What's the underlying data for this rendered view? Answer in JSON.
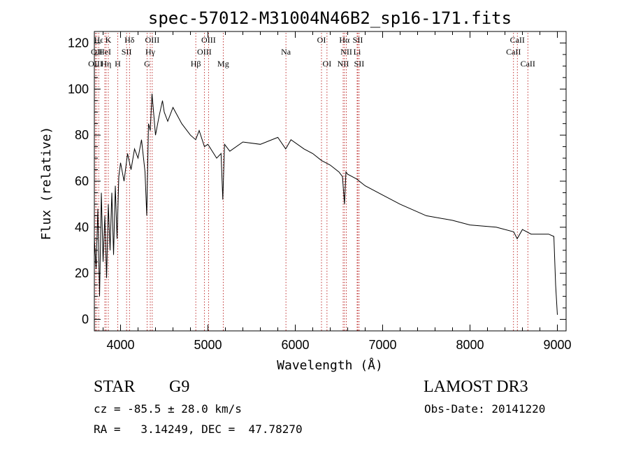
{
  "chart_data": {
    "type": "line",
    "title": "spec-57012-M31004N46B2_sp16-171.fits",
    "xlabel": "Wavelength (Å)",
    "ylabel": "Flux (relative)",
    "xlim": [
      3700,
      9100
    ],
    "ylim": [
      -5,
      125
    ],
    "xticks": [
      4000,
      5000,
      6000,
      7000,
      8000,
      9000
    ],
    "yticks": [
      0,
      20,
      40,
      60,
      80,
      100,
      120
    ],
    "series": [
      {
        "name": "flux",
        "x": [
          3700,
          3720,
          3740,
          3760,
          3780,
          3800,
          3820,
          3840,
          3860,
          3880,
          3900,
          3920,
          3940,
          3960,
          3980,
          4000,
          4040,
          4080,
          4120,
          4160,
          4200,
          4240,
          4280,
          4300,
          4320,
          4340,
          4360,
          4400,
          4440,
          4480,
          4500,
          4540,
          4600,
          4700,
          4800,
          4860,
          4900,
          4960,
          5000,
          5100,
          5150,
          5170,
          5190,
          5250,
          5400,
          5600,
          5800,
          5890,
          5950,
          6100,
          6200,
          6300,
          6400,
          6500,
          6540,
          6563,
          6580,
          6600,
          6700,
          6800,
          7000,
          7200,
          7500,
          7800,
          8000,
          8300,
          8500,
          8540,
          8600,
          8700,
          8800,
          8900,
          8960,
          8980,
          9000
        ],
        "y": [
          35,
          22,
          48,
          10,
          55,
          25,
          45,
          18,
          50,
          30,
          55,
          28,
          58,
          35,
          62,
          68,
          60,
          72,
          65,
          74,
          70,
          78,
          64,
          45,
          85,
          82,
          98,
          80,
          88,
          95,
          90,
          86,
          92,
          85,
          80,
          78,
          82,
          75,
          76,
          70,
          72,
          52,
          76,
          73,
          77,
          76,
          79,
          74,
          78,
          74,
          72,
          69,
          67,
          64,
          62,
          50,
          64,
          63,
          61,
          58,
          54,
          50,
          45,
          43,
          41,
          40,
          38,
          35,
          39,
          37,
          37,
          37,
          36,
          15,
          2
        ]
      }
    ],
    "lines": [
      {
        "label": "Hϵ",
        "x": 3750,
        "row": 0
      },
      {
        "label": "K",
        "x": 3860,
        "row": 0
      },
      {
        "label": "Hδ",
        "x": 4102,
        "row": 0
      },
      {
        "label": "OII",
        "x": 3727,
        "row": 1
      },
      {
        "label": "HeI",
        "x": 3820,
        "row": 1
      },
      {
        "label": "SII",
        "x": 4069,
        "row": 1
      },
      {
        "label": "OIII",
        "x": 3712,
        "row": 2
      },
      {
        "label": "Hη",
        "x": 3835,
        "row": 2
      },
      {
        "label": "H",
        "x": 3968,
        "row": 2
      },
      {
        "label": "OIII",
        "x": 4363,
        "row": 0
      },
      {
        "label": "Hγ",
        "x": 4340,
        "row": 1
      },
      {
        "label": "G",
        "x": 4304,
        "row": 2
      },
      {
        "label": "OIII",
        "x": 5007,
        "row": 0
      },
      {
        "label": "OIII",
        "x": 4959,
        "row": 1
      },
      {
        "label": "Hβ",
        "x": 4861,
        "row": 2
      },
      {
        "label": "Mg",
        "x": 5175,
        "row": 2
      },
      {
        "label": "Na",
        "x": 5893,
        "row": 1
      },
      {
        "label": "OI",
        "x": 6300,
        "row": 0
      },
      {
        "label": "OI",
        "x": 6363,
        "row": 2
      },
      {
        "label": "Hα",
        "x": 6563,
        "row": 0
      },
      {
        "label": "SII",
        "x": 6716,
        "row": 0
      },
      {
        "label": "NII",
        "x": 6584,
        "row": 1
      },
      {
        "label": "Li",
        "x": 6708,
        "row": 1
      },
      {
        "label": "NII",
        "x": 6548,
        "row": 2
      },
      {
        "label": "SII",
        "x": 6731,
        "row": 2
      },
      {
        "label": "CaII",
        "x": 8542,
        "row": 0
      },
      {
        "label": "CaII",
        "x": 8498,
        "row": 1
      },
      {
        "label": "CaII",
        "x": 8662,
        "row": 2
      }
    ]
  },
  "info": {
    "object_class": "STAR",
    "subclass": "G9",
    "survey": "LAMOST DR3",
    "redshift_line": "cz = -85.5 ± 28.0 km/s",
    "obs_date": "Obs-Date: 20141220",
    "coords": "RA =   3.14249, DEC =  47.78270"
  }
}
